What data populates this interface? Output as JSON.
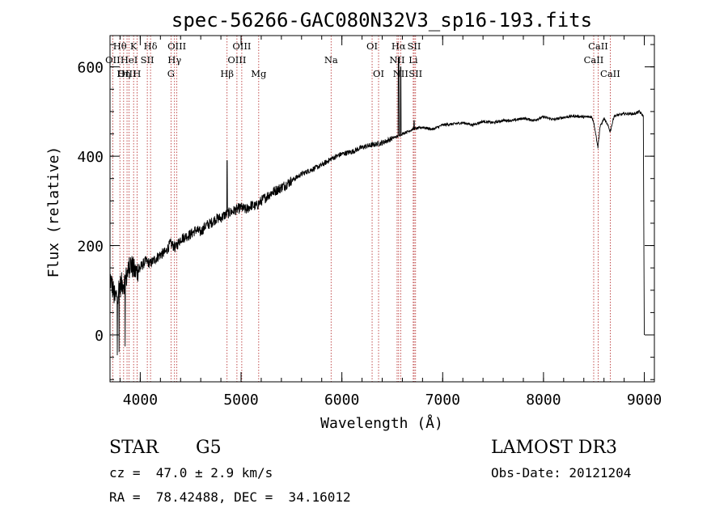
{
  "chart_data": {
    "type": "line",
    "title": "spec-56266-GAC080N32V3_sp16-193.fits",
    "xlabel": "Wavelength (Å)",
    "ylabel": "Flux (relative)",
    "xlim": [
      3700,
      9100
    ],
    "ylim": [
      -105,
      670
    ],
    "x_ticks": [
      4000,
      5000,
      6000,
      7000,
      8000,
      9000
    ],
    "x_tick_labels": [
      "4000",
      "5000",
      "6000",
      "7000",
      "8000",
      "9000"
    ],
    "y_ticks": [
      0,
      200,
      400,
      600
    ],
    "y_tick_labels": [
      "0",
      "200",
      "400",
      "600"
    ],
    "grid": false,
    "series": [
      {
        "name": "flux",
        "x": [
          3700,
          3750,
          3800,
          3850,
          3900,
          3950,
          4000,
          4050,
          4100,
          4150,
          4200,
          4250,
          4300,
          4350,
          4400,
          4450,
          4500,
          4550,
          4600,
          4650,
          4700,
          4750,
          4800,
          4850,
          4900,
          4950,
          5000,
          5050,
          5100,
          5150,
          5200,
          5300,
          5400,
          5500,
          5600,
          5700,
          5800,
          5900,
          6000,
          6100,
          6200,
          6300,
          6400,
          6500,
          6560,
          6600,
          6700,
          6800,
          6900,
          7000,
          7100,
          7200,
          7300,
          7400,
          7500,
          7600,
          7700,
          7800,
          7900,
          8000,
          8100,
          8200,
          8300,
          8400,
          8480,
          8500,
          8540,
          8560,
          8600,
          8640,
          8662,
          8700,
          8800,
          8900,
          8950,
          8990,
          9000
        ],
        "y": [
          130,
          80,
          110,
          120,
          160,
          140,
          150,
          165,
          160,
          170,
          180,
          185,
          205,
          195,
          215,
          220,
          225,
          235,
          230,
          245,
          250,
          260,
          262,
          270,
          275,
          280,
          285,
          280,
          290,
          288,
          300,
          318,
          330,
          345,
          360,
          370,
          380,
          395,
          405,
          410,
          420,
          425,
          430,
          440,
          445,
          450,
          460,
          465,
          460,
          470,
          472,
          475,
          470,
          478,
          475,
          480,
          480,
          485,
          480,
          488,
          482,
          487,
          490,
          488,
          488,
          475,
          420,
          465,
          485,
          468,
          455,
          490,
          495,
          495,
          500,
          490,
          0
        ]
      }
    ],
    "spectral_lines": [
      {
        "label": "Hθ",
        "wavelength": 3798,
        "row": 1
      },
      {
        "label": "K",
        "wavelength": 3934,
        "row": 1
      },
      {
        "label": "Hδ",
        "wavelength": 4102,
        "row": 1
      },
      {
        "label": "OIII",
        "wavelength": 4363,
        "row": 1
      },
      {
        "label": "OIII",
        "wavelength": 5007,
        "row": 1
      },
      {
        "label": "OI",
        "wavelength": 6300,
        "row": 1
      },
      {
        "label": "Hα",
        "wavelength": 6563,
        "row": 1
      },
      {
        "label": "SII",
        "wavelength": 6717,
        "row": 1
      },
      {
        "label": "CaII",
        "wavelength": 8542,
        "row": 1
      },
      {
        "label": "OII",
        "wavelength": 3727,
        "row": 2
      },
      {
        "label": "HeI",
        "wavelength": 3889,
        "row": 2
      },
      {
        "label": "SII",
        "wavelength": 4070,
        "row": 2
      },
      {
        "label": "Hγ",
        "wavelength": 4340,
        "row": 2
      },
      {
        "label": "OIII",
        "wavelength": 4959,
        "row": 2
      },
      {
        "label": "Na",
        "wavelength": 5893,
        "row": 2
      },
      {
        "label": "NII",
        "wavelength": 6548,
        "row": 2
      },
      {
        "label": "Li",
        "wavelength": 6708,
        "row": 2
      },
      {
        "label": "CaII",
        "wavelength": 8498,
        "row": 2
      },
      {
        "label": "OIII",
        "wavelength": 3869,
        "row": 3
      },
      {
        "label": "Hη",
        "wavelength": 3835,
        "row": 3
      },
      {
        "label": "H",
        "wavelength": 3968,
        "row": 3
      },
      {
        "label": "G",
        "wavelength": 4305,
        "row": 3
      },
      {
        "label": "Hβ",
        "wavelength": 4861,
        "row": 3
      },
      {
        "label": "Mg",
        "wavelength": 5175,
        "row": 3
      },
      {
        "label": "OI",
        "wavelength": 6364,
        "row": 3
      },
      {
        "label": "NII",
        "wavelength": 6583,
        "row": 3
      },
      {
        "label": "SII",
        "wavelength": 6731,
        "row": 3
      },
      {
        "label": "CaII",
        "wavelength": 8662,
        "row": 3
      }
    ]
  },
  "info": {
    "object_class": "STAR",
    "subclass": "G5",
    "survey": "LAMOST DR3",
    "redshift": "cz =  47.0 ± 2.9 km/s",
    "obs_date": "Obs-Date: 20121204",
    "coords": "RA =  78.42488, DEC =  34.16012"
  }
}
